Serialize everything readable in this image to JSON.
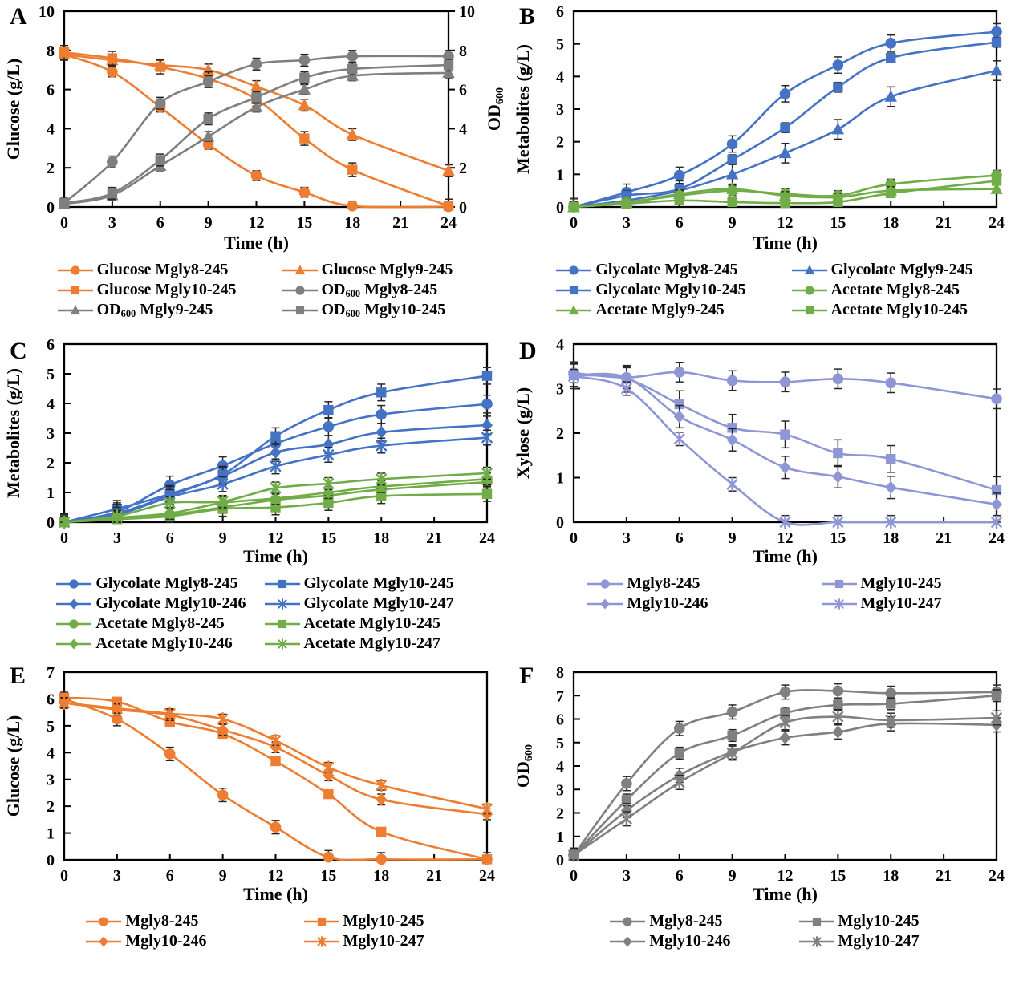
{
  "figure": {
    "background": "#FFFFFF",
    "panels_order": [
      "A",
      "B",
      "C",
      "D",
      "E",
      "F"
    ],
    "x_axis_label_all": "Time (h)"
  },
  "palette": {
    "orange": "#ED7D31",
    "gray": "#7F7F7F",
    "blue": "#4472C4",
    "green": "#70AD47",
    "periwinkle": "#8E96D6",
    "error_bar": "#262626",
    "axis": "#000000"
  },
  "chart_data": [
    {
      "panel": "A",
      "type": "line",
      "xlabel": "Time (h)",
      "ylabel": "Glucose (g/L)",
      "ylabel_right": "OD600",
      "xlim": [
        0,
        24
      ],
      "ylim": [
        0,
        10
      ],
      "x_ticks": [
        0,
        3,
        6,
        9,
        12,
        15,
        18,
        21,
        24
      ],
      "y_ticks": [
        0,
        2,
        4,
        6,
        8,
        10
      ],
      "x": [
        0,
        3,
        6,
        9,
        12,
        15,
        18,
        24
      ],
      "legend_columns": 2,
      "series": [
        {
          "name": "Glucose Mgly8-245",
          "marker": "circle",
          "color": "#ED7D31",
          "err": 0.25,
          "values": [
            7.8,
            6.9,
            5.1,
            3.2,
            1.6,
            0.75,
            0.05,
            0.02
          ]
        },
        {
          "name": "Glucose Mgly9-245",
          "marker": "triangle",
          "color": "#ED7D31",
          "err": 0.3,
          "values": [
            7.8,
            7.5,
            7.25,
            7.0,
            6.15,
            5.2,
            3.7,
            1.85
          ]
        },
        {
          "name": "Glucose Mgly10-245",
          "marker": "square",
          "color": "#ED7D31",
          "err": 0.35,
          "values": [
            7.9,
            7.6,
            7.15,
            6.55,
            5.5,
            3.5,
            1.9,
            0.05
          ]
        },
        {
          "name": "OD600 Mgly8-245",
          "marker": "circle",
          "color": "#7F7F7F",
          "err": 0.3,
          "values": [
            0.2,
            2.3,
            5.3,
            6.4,
            7.3,
            7.5,
            7.7,
            7.7
          ]
        },
        {
          "name": "OD600 Mgly9-245",
          "marker": "triangle",
          "color": "#7F7F7F",
          "err": 0.25,
          "values": [
            0.15,
            0.6,
            2.1,
            3.6,
            5.1,
            6.0,
            6.7,
            6.85
          ]
        },
        {
          "name": "OD600 Mgly10-245",
          "marker": "square",
          "color": "#7F7F7F",
          "err": 0.3,
          "values": [
            0.2,
            0.7,
            2.4,
            4.5,
            5.6,
            6.6,
            7.05,
            7.25
          ]
        }
      ]
    },
    {
      "panel": "B",
      "type": "line",
      "xlabel": "Time (h)",
      "ylabel": "Metabolites (g/L)",
      "xlim": [
        0,
        24
      ],
      "ylim": [
        0,
        6
      ],
      "x_ticks": [
        0,
        3,
        6,
        9,
        12,
        15,
        18,
        21,
        24
      ],
      "y_ticks": [
        0,
        1,
        2,
        3,
        4,
        5,
        6
      ],
      "x": [
        0,
        3,
        6,
        9,
        12,
        15,
        18,
        24
      ],
      "legend_columns": 2,
      "series": [
        {
          "name": "Glycolate Mgly8-245",
          "marker": "circle",
          "color": "#4472C4",
          "err": 0.25,
          "values": [
            0,
            0.45,
            0.97,
            1.93,
            3.47,
            4.35,
            5.02,
            5.37
          ]
        },
        {
          "name": "Glycolate Mgly9-245",
          "marker": "triangle",
          "color": "#4472C4",
          "err": 0.3,
          "values": [
            0,
            0.2,
            0.5,
            1.0,
            1.65,
            2.38,
            3.38,
            4.18
          ]
        },
        {
          "name": "Glycolate Mgly10-245",
          "marker": "square",
          "color": "#4472C4",
          "err": 0.15,
          "values": [
            0,
            0.35,
            0.55,
            1.45,
            2.43,
            3.67,
            4.57,
            5.05
          ]
        },
        {
          "name": "Acetate Mgly8-245",
          "marker": "circle",
          "color": "#70AD47",
          "err": 0.15,
          "values": [
            0,
            0.15,
            0.35,
            0.5,
            0.4,
            0.35,
            0.7,
            0.97
          ]
        },
        {
          "name": "Acetate Mgly9-245",
          "marker": "triangle",
          "color": "#70AD47",
          "err": 0.12,
          "values": [
            0,
            0.12,
            0.4,
            0.55,
            0.35,
            0.3,
            0.5,
            0.55
          ]
        },
        {
          "name": "Acetate Mgly10-245",
          "marker": "square",
          "color": "#70AD47",
          "err": 0.12,
          "values": [
            0,
            0.1,
            0.2,
            0.15,
            0.12,
            0.15,
            0.42,
            0.8
          ]
        }
      ]
    },
    {
      "panel": "C",
      "type": "line",
      "xlabel": "Time (h)",
      "ylabel": "Metabolites (g/L)",
      "xlim": [
        0,
        24
      ],
      "ylim": [
        0,
        6
      ],
      "x_ticks": [
        0,
        3,
        6,
        9,
        12,
        15,
        18,
        21,
        24
      ],
      "y_ticks": [
        0,
        1,
        2,
        3,
        4,
        5,
        6
      ],
      "x": [
        0,
        3,
        6,
        9,
        12,
        15,
        18,
        24
      ],
      "legend_columns": 2,
      "series": [
        {
          "name": "Glycolate Mgly8-245",
          "marker": "circle",
          "color": "#4472C4",
          "err": 0.3,
          "values": [
            0,
            0.35,
            1.25,
            1.9,
            2.65,
            3.22,
            3.63,
            3.98
          ]
        },
        {
          "name": "Glycolate Mgly10-245",
          "marker": "square",
          "color": "#4472C4",
          "err": 0.28,
          "values": [
            0,
            0.45,
            0.95,
            1.6,
            2.9,
            3.78,
            4.37,
            4.93
          ]
        },
        {
          "name": "Glycolate Mgly10-246",
          "marker": "diamond",
          "color": "#4472C4",
          "err": 0.3,
          "values": [
            0,
            0.3,
            0.9,
            1.55,
            2.35,
            2.62,
            3.03,
            3.27
          ]
        },
        {
          "name": "Glycolate Mgly10-247",
          "marker": "xstar",
          "color": "#4472C4",
          "err": 0.25,
          "values": [
            0,
            0.25,
            0.85,
            1.28,
            1.88,
            2.27,
            2.58,
            2.85
          ]
        },
        {
          "name": "Acetate Mgly8-245",
          "marker": "circle",
          "color": "#70AD47",
          "err": 0.2,
          "values": [
            0,
            0.15,
            0.25,
            0.5,
            0.75,
            0.9,
            1.1,
            1.35
          ]
        },
        {
          "name": "Acetate Mgly10-245",
          "marker": "square",
          "color": "#70AD47",
          "err": 0.25,
          "values": [
            0,
            0.1,
            0.2,
            0.45,
            0.5,
            0.65,
            0.88,
            0.95
          ]
        },
        {
          "name": "Acetate Mgly10-246",
          "marker": "diamond",
          "color": "#70AD47",
          "err": 0.2,
          "values": [
            0,
            0.15,
            0.3,
            0.65,
            0.8,
            1.0,
            1.2,
            1.45
          ]
        },
        {
          "name": "Acetate Mgly10-247",
          "marker": "xstar",
          "color": "#70AD47",
          "err": 0.2,
          "values": [
            0,
            0.2,
            0.65,
            0.7,
            1.15,
            1.3,
            1.45,
            1.65
          ]
        }
      ]
    },
    {
      "panel": "D",
      "type": "line",
      "xlabel": "Time (h)",
      "ylabel": "Xylose (g/L)",
      "xlim": [
        0,
        24
      ],
      "ylim": [
        0,
        4
      ],
      "x_ticks": [
        0,
        3,
        6,
        9,
        12,
        15,
        18,
        21,
        24
      ],
      "y_ticks": [
        0,
        1,
        2,
        3,
        4
      ],
      "x": [
        0,
        3,
        6,
        9,
        12,
        15,
        18,
        24
      ],
      "legend_columns": 2,
      "series": [
        {
          "name": "Mgly8-245",
          "marker": "circle",
          "color": "#8E96D6",
          "err": 0.22,
          "values": [
            3.35,
            3.25,
            3.37,
            3.18,
            3.15,
            3.22,
            3.13,
            2.77
          ]
        },
        {
          "name": "Mgly10-245",
          "marker": "square",
          "color": "#8E96D6",
          "err": 0.3,
          "values": [
            3.3,
            3.22,
            2.65,
            2.12,
            1.97,
            1.55,
            1.42,
            0.72
          ]
        },
        {
          "name": "Mgly10-246",
          "marker": "diamond",
          "color": "#8E96D6",
          "err": 0.25,
          "values": [
            3.3,
            3.25,
            2.37,
            1.85,
            1.23,
            1.02,
            0.78,
            0.4
          ]
        },
        {
          "name": "Mgly10-247",
          "marker": "xstar",
          "color": "#8E96D6",
          "err": 0.15,
          "values": [
            3.28,
            3.0,
            1.87,
            0.85,
            0,
            0,
            0,
            0
          ]
        }
      ]
    },
    {
      "panel": "E",
      "type": "line",
      "xlabel": "Time (h)",
      "ylabel": "Glucose (g/L)",
      "xlim": [
        0,
        24
      ],
      "ylim": [
        0,
        7
      ],
      "x_ticks": [
        0,
        3,
        6,
        9,
        12,
        15,
        18,
        21,
        24
      ],
      "y_ticks": [
        0,
        1,
        2,
        3,
        4,
        5,
        6,
        7
      ],
      "x": [
        0,
        3,
        6,
        9,
        12,
        15,
        18,
        24
      ],
      "legend_columns": 2,
      "series": [
        {
          "name": "Mgly8-245",
          "marker": "circle",
          "color": "#ED7D31",
          "err": 0.25,
          "values": [
            6.0,
            5.25,
            3.95,
            2.42,
            1.22,
            0.1,
            0.02,
            0.02
          ]
        },
        {
          "name": "Mgly10-245",
          "marker": "square",
          "color": "#ED7D31",
          "err": 0.15,
          "values": [
            6.05,
            5.9,
            5.15,
            4.7,
            3.68,
            2.45,
            1.05,
            0.02
          ]
        },
        {
          "name": "Mgly10-246",
          "marker": "diamond",
          "color": "#ED7D31",
          "err": 0.2,
          "values": [
            5.85,
            5.6,
            5.4,
            4.85,
            4.2,
            3.15,
            2.25,
            1.7
          ]
        },
        {
          "name": "Mgly10-247",
          "marker": "xstar",
          "color": "#ED7D31",
          "err": 0.18,
          "values": [
            5.85,
            5.65,
            5.45,
            5.25,
            4.45,
            3.45,
            2.78,
            1.9
          ]
        }
      ]
    },
    {
      "panel": "F",
      "type": "line",
      "xlabel": "Time (h)",
      "ylabel": "OD600",
      "xlim": [
        0,
        24
      ],
      "ylim": [
        0,
        8
      ],
      "x_ticks": [
        0,
        3,
        6,
        9,
        12,
        15,
        18,
        21,
        24
      ],
      "y_ticks": [
        0,
        1,
        2,
        3,
        4,
        5,
        6,
        7,
        8
      ],
      "x": [
        0,
        3,
        6,
        9,
        12,
        15,
        18,
        24
      ],
      "legend_columns": 2,
      "series": [
        {
          "name": "Mgly8-245",
          "marker": "circle",
          "color": "#808080",
          "err": 0.3,
          "values": [
            0.2,
            3.25,
            5.6,
            6.3,
            7.15,
            7.2,
            7.1,
            7.15
          ]
        },
        {
          "name": "Mgly10-245",
          "marker": "square",
          "color": "#808080",
          "err": 0.25,
          "values": [
            0.2,
            2.55,
            4.55,
            5.3,
            6.25,
            6.6,
            6.65,
            7.0
          ]
        },
        {
          "name": "Mgly10-246",
          "marker": "diamond",
          "color": "#808080",
          "err": 0.3,
          "values": [
            0.2,
            2.1,
            3.6,
            4.6,
            5.2,
            5.45,
            5.8,
            5.75
          ]
        },
        {
          "name": "Mgly10-247",
          "marker": "xstar",
          "color": "#808080",
          "err": 0.3,
          "values": [
            0.2,
            1.75,
            3.3,
            4.55,
            5.85,
            6.1,
            5.95,
            6.05
          ]
        }
      ]
    }
  ]
}
